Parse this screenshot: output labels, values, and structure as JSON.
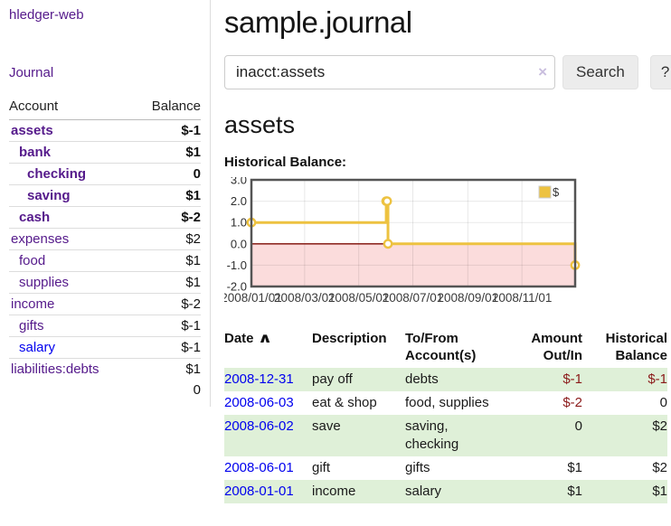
{
  "sidebar": {
    "brand": "hledger-web",
    "journal_link": "Journal",
    "accounts": {
      "col_account": "Account",
      "col_balance": "Balance",
      "rows": [
        {
          "label": "assets",
          "depth": 0,
          "bold": true,
          "link_tone": "purple",
          "balance": "$-1",
          "balance_tone": "neg-strong"
        },
        {
          "label": "bank",
          "depth": 1,
          "bold": true,
          "link_tone": "purple",
          "balance": "$1",
          "balance_tone": "normal"
        },
        {
          "label": "checking",
          "depth": 2,
          "bold": true,
          "link_tone": "purple",
          "balance": "0",
          "balance_tone": "normal"
        },
        {
          "label": "saving",
          "depth": 2,
          "bold": true,
          "link_tone": "purple",
          "balance": "$1",
          "balance_tone": "normal"
        },
        {
          "label": "cash",
          "depth": 1,
          "bold": true,
          "link_tone": "purple",
          "balance": "$-2",
          "balance_tone": "neg-strong"
        },
        {
          "label": "expenses",
          "depth": 0,
          "bold": false,
          "link_tone": "purple",
          "balance": "$2",
          "balance_tone": "normal"
        },
        {
          "label": "food",
          "depth": 1,
          "bold": false,
          "link_tone": "purple",
          "balance": "$1",
          "balance_tone": "normal"
        },
        {
          "label": "supplies",
          "depth": 1,
          "bold": false,
          "link_tone": "purple",
          "balance": "$1",
          "balance_tone": "normal"
        },
        {
          "label": "income",
          "depth": 0,
          "bold": false,
          "link_tone": "purple",
          "balance": "$-2",
          "balance_tone": "neg-weak"
        },
        {
          "label": "gifts",
          "depth": 1,
          "bold": false,
          "link_tone": "purple",
          "balance": "$-1",
          "balance_tone": "neg-weak"
        },
        {
          "label": "salary",
          "depth": 1,
          "bold": false,
          "link_tone": "blue",
          "balance": "$-1",
          "balance_tone": "neg-weak"
        },
        {
          "label": "liabilities:debts",
          "depth": 0,
          "bold": false,
          "link_tone": "purple",
          "balance": "$1",
          "balance_tone": "normal"
        }
      ],
      "total": "0"
    }
  },
  "main": {
    "title": "sample.journal",
    "search": {
      "value": "inacct:assets",
      "clear_icon": "×",
      "search_button": "Search",
      "help_button": "?"
    },
    "account_heading": "assets",
    "chart_title": "Historical Balance:"
  },
  "chart_data": {
    "type": "line",
    "step": true,
    "title": "Historical Balance:",
    "series": [
      {
        "name": "$",
        "color": "#edc240",
        "points": [
          [
            "2008-01-01",
            1
          ],
          [
            "2008-06-01",
            2
          ],
          [
            "2008-06-02",
            2
          ],
          [
            "2008-06-03",
            0
          ],
          [
            "2008-12-31",
            -1
          ]
        ]
      }
    ],
    "x_range": [
      "2008-01-01",
      "2008-12-31"
    ],
    "ylim": [
      -2,
      3
    ],
    "y_ticks": [
      3.0,
      2.0,
      1.0,
      0.0,
      -1.0,
      -2.0
    ],
    "x_ticks": [
      "2008/01/01",
      "2008/03/01",
      "2008/05/01",
      "2008/07/01",
      "2008/09/01",
      "2008/11/01"
    ],
    "legend": {
      "label": "$",
      "position": "top-right"
    },
    "grid": true,
    "zero_line_color": "#7c0a02",
    "negative_region_color": "#fbdcdc",
    "border_color": "#545454"
  },
  "register": {
    "headers": {
      "date": "Date",
      "sort_indicator": "∧",
      "description": "Description",
      "tofrom": "To/From Account(s)",
      "amount": "Amount Out/In",
      "balance": "Historical Balance"
    },
    "rows": [
      {
        "date": "2008-12-31",
        "description": "pay off",
        "accounts": "debts",
        "amount": "$-1",
        "amount_tone": "neg",
        "balance": "$-1",
        "balance_tone": "neg",
        "shade": true
      },
      {
        "date": "2008-06-03",
        "description": "eat & shop",
        "accounts": "food, supplies",
        "amount": "$-2",
        "amount_tone": "neg",
        "balance": "0",
        "balance_tone": "normal",
        "shade": false
      },
      {
        "date": "2008-06-02",
        "description": "save",
        "accounts": "saving, checking",
        "amount": "0",
        "amount_tone": "normal",
        "balance": "$2",
        "balance_tone": "normal",
        "shade": true
      },
      {
        "date": "2008-06-01",
        "description": "gift",
        "accounts": "gifts",
        "amount": "$1",
        "amount_tone": "normal",
        "balance": "$2",
        "balance_tone": "normal",
        "shade": false
      },
      {
        "date": "2008-01-01",
        "description": "income",
        "accounts": "salary",
        "amount": "$1",
        "amount_tone": "normal",
        "balance": "$1",
        "balance_tone": "normal",
        "shade": true
      }
    ]
  },
  "colors": {
    "link_purple": "#551a8b",
    "link_blue": "#0000ee",
    "negative_strong": "#8b1111",
    "negative_weak": "#bf6a78",
    "row_green": "#dff0d8",
    "chart_line": "#edc240",
    "button_bg": "#ececec"
  }
}
